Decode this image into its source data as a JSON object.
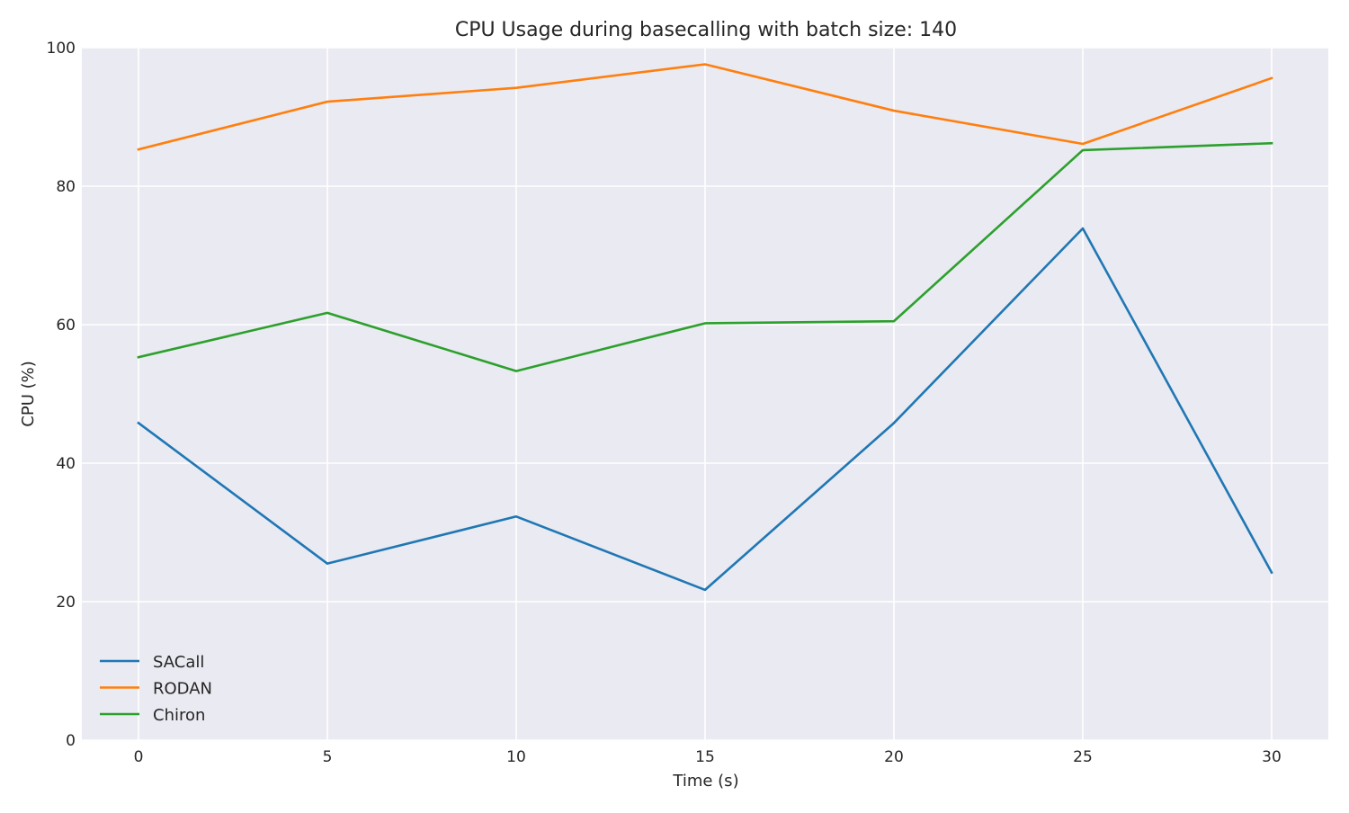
{
  "chart_data": {
    "type": "line",
    "title": "CPU Usage during basecalling with batch size: 140",
    "xlabel": "Time (s)",
    "ylabel": "CPU (%)",
    "x": [
      0,
      5,
      10,
      15,
      20,
      25,
      30
    ],
    "xticks": [
      "0",
      "5",
      "10",
      "15",
      "20",
      "25",
      "30"
    ],
    "yticks": [
      "0",
      "20",
      "40",
      "60",
      "80",
      "100"
    ],
    "xlim": [
      -1.5,
      31.5
    ],
    "ylim": [
      0,
      100
    ],
    "grid": true,
    "legend_position": "lower-left",
    "background": "#eaeaf2",
    "series": [
      {
        "name": "SACall",
        "color": "#1f77b4",
        "values": [
          45.8,
          25.5,
          32.3,
          21.7,
          45.8,
          73.9,
          24.2
        ]
      },
      {
        "name": "RODAN",
        "color": "#ff7f0e",
        "values": [
          85.3,
          92.2,
          94.2,
          97.6,
          90.9,
          86.1,
          95.6
        ]
      },
      {
        "name": "Chiron",
        "color": "#2ca02c",
        "values": [
          55.3,
          61.7,
          53.3,
          60.2,
          60.5,
          85.2,
          86.2
        ]
      }
    ]
  }
}
